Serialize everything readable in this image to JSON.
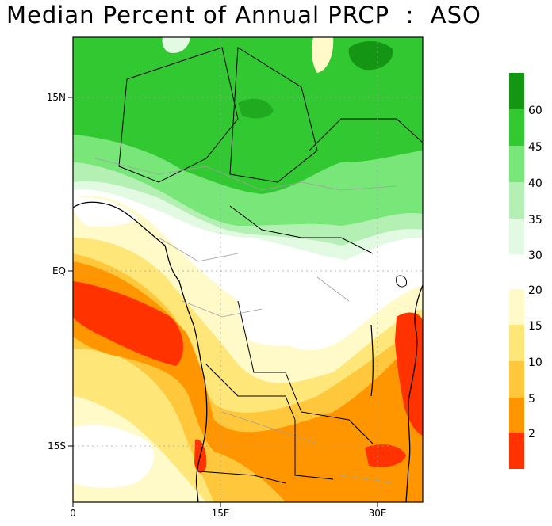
{
  "title": "Median Percent of Annual PRCP  :  ASO",
  "axes": {
    "x_ticks": [
      "0",
      "15E",
      "30E"
    ],
    "y_ticks": [
      "15N",
      "EQ",
      "15S"
    ]
  },
  "legend": {
    "upper_block": [
      {
        "label": "60",
        "color": "#149614"
      },
      {
        "label": "45",
        "color": "#32c832"
      },
      {
        "label": "40",
        "color": "#78e678"
      },
      {
        "label": "35",
        "color": "#b4f0b4"
      },
      {
        "label": "30",
        "color": "#e1fae1"
      }
    ],
    "top_swatch_color": "#149614",
    "lower_block": [
      {
        "label": "20",
        "color": "#fffac8"
      },
      {
        "label": "15",
        "color": "#ffe678"
      },
      {
        "label": "10",
        "color": "#ffc83c"
      },
      {
        "label": "5",
        "color": "#ff9600"
      },
      {
        "label": "2",
        "color": "#ff3200"
      }
    ],
    "bottom_swatch_color": "#a50000"
  },
  "colors": {
    "land_border": "#000000",
    "country_border": "#a0a0a0",
    "grid": "#a0a0a0"
  }
}
